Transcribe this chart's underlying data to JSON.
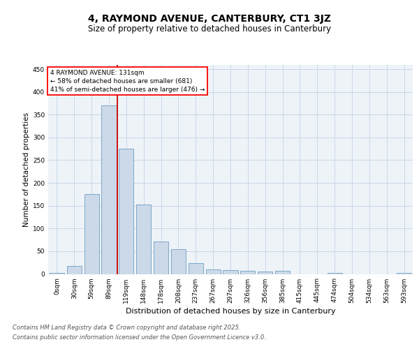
{
  "title": "4, RAYMOND AVENUE, CANTERBURY, CT1 3JZ",
  "subtitle": "Size of property relative to detached houses in Canterbury",
  "xlabel": "Distribution of detached houses by size in Canterbury",
  "ylabel": "Number of detached properties",
  "bar_labels": [
    "0sqm",
    "30sqm",
    "59sqm",
    "89sqm",
    "119sqm",
    "148sqm",
    "178sqm",
    "208sqm",
    "237sqm",
    "267sqm",
    "297sqm",
    "326sqm",
    "356sqm",
    "385sqm",
    "415sqm",
    "445sqm",
    "474sqm",
    "504sqm",
    "534sqm",
    "563sqm",
    "593sqm"
  ],
  "values": [
    2,
    17,
    176,
    370,
    276,
    152,
    72,
    54,
    24,
    10,
    9,
    7,
    5,
    7,
    0,
    0,
    3,
    0,
    0,
    0,
    2
  ],
  "bar_color": "#ccd9e8",
  "bar_edge_color": "#7ea8c9",
  "grid_color": "#c8d8e8",
  "bg_color": "#eef3f8",
  "annotation_text": "4 RAYMOND AVENUE: 131sqm\n← 58% of detached houses are smaller (681)\n41% of semi-detached houses are larger (476) →",
  "vline_x": 3.5,
  "vline_color": "#cc0000",
  "ylim": [
    0,
    460
  ],
  "yticks": [
    0,
    50,
    100,
    150,
    200,
    250,
    300,
    350,
    400,
    450
  ],
  "footer_line1": "Contains HM Land Registry data © Crown copyright and database right 2025.",
  "footer_line2": "Contains public sector information licensed under the Open Government Licence v3.0.",
  "title_fontsize": 10,
  "subtitle_fontsize": 8.5,
  "xlabel_fontsize": 8,
  "ylabel_fontsize": 7.5,
  "tick_fontsize": 6.5,
  "annot_fontsize": 6.5,
  "footer_fontsize": 6
}
